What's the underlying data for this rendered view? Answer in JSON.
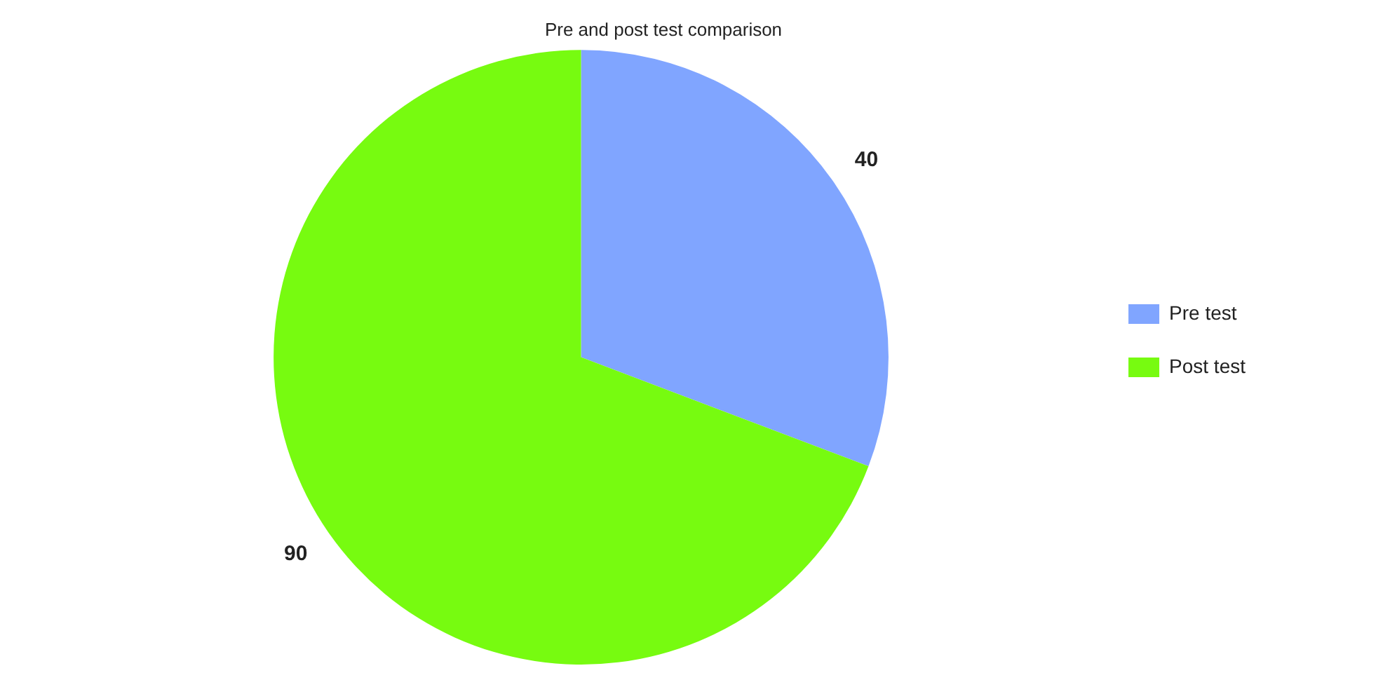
{
  "chart_data": {
    "type": "pie",
    "title": "Pre and post test comparison",
    "categories": [
      "Pre test",
      "Post test"
    ],
    "values": [
      40,
      90
    ],
    "colors": [
      "#80a5ff",
      "#77fb10"
    ],
    "data_labels": true,
    "legend": "right"
  }
}
